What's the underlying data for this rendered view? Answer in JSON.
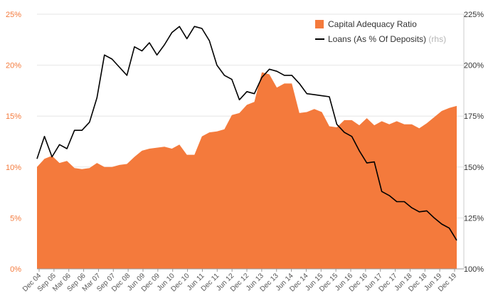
{
  "chart_data": {
    "type": "area",
    "x_labels": [
      "Dec 04",
      "Sep 05",
      "Mar 06",
      "Sep 06",
      "Mar 07",
      "Sep 07",
      "Dec 08",
      "Jun 09",
      "Dec 09",
      "Jun 10",
      "Dec 10",
      "Jun 11",
      "Dec 11",
      "Jun 12",
      "Dec 12",
      "Jun 13",
      "Dec 13",
      "Jun 14",
      "Dec 14",
      "Jun 15",
      "Dec 15",
      "Jun 16",
      "Dec 16",
      "Jun 17",
      "Dec 17",
      "Jun 18",
      "Dec 18",
      "Jun 19",
      "Dec 19"
    ],
    "left_axis": {
      "ylim": [
        0,
        25
      ],
      "tick_labels": [
        "0%",
        "5%",
        "10%",
        "15%",
        "20%",
        "25%"
      ]
    },
    "right_axis": {
      "ylim": [
        100,
        225
      ],
      "tick_labels": [
        "100%",
        "125%",
        "150%",
        "175%",
        "200%",
        "225%"
      ]
    },
    "legend": {
      "placement": "top-right"
    },
    "series": [
      {
        "name": "Capital Adequacy Ratio",
        "type": "area",
        "axis": "left",
        "color": "#f47a3c",
        "values": [
          10.0,
          10.8,
          11.1,
          10.4,
          10.6,
          9.9,
          9.8,
          9.9,
          10.4,
          10.0,
          10.0,
          10.2,
          10.3,
          11.0,
          11.6,
          11.8,
          11.9,
          12.0,
          11.8,
          12.2,
          11.2,
          11.2,
          13.0,
          13.4,
          13.5,
          13.7,
          15.1,
          15.3,
          16.1,
          16.4,
          19.3,
          19.1,
          17.8,
          18.2,
          18.2,
          15.3,
          15.4,
          15.7,
          15.4,
          14.0,
          13.9,
          14.6,
          14.6,
          14.1,
          14.8,
          14.1,
          14.5,
          14.2,
          14.5,
          14.2,
          14.2,
          13.8,
          14.3,
          14.9,
          15.5,
          15.8,
          16.0
        ]
      },
      {
        "name": "Loans (As % Of Deposits)",
        "name_suffix": "(rhs)",
        "type": "line",
        "axis": "right",
        "color": "#000000",
        "values": [
          154,
          165,
          155,
          161,
          159,
          168,
          168,
          172,
          184,
          205,
          203,
          199,
          195,
          209,
          207,
          211,
          205,
          210,
          216,
          219,
          213,
          219,
          218,
          212,
          200,
          195,
          193,
          183,
          187,
          186,
          194,
          198,
          197,
          195,
          195,
          191,
          186,
          185.5,
          185,
          184.5,
          171,
          167,
          165,
          158,
          152,
          152.5,
          138,
          136,
          133,
          133,
          130,
          128,
          128.5,
          125,
          122,
          120,
          114
        ]
      }
    ]
  }
}
